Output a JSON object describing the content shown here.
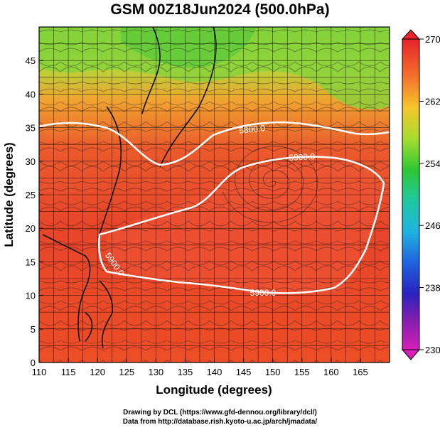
{
  "title": "GSM 00Z18Jun2024 (500.0hPa)",
  "xlabel": "Longitude (degrees)",
  "ylabel": "Latitude  (degrees)",
  "xticks": [
    110,
    115,
    120,
    125,
    130,
    135,
    140,
    145,
    150,
    155,
    160,
    165
  ],
  "yticks": [
    0,
    5,
    10,
    15,
    20,
    25,
    30,
    35,
    40,
    45
  ],
  "xlim": [
    110,
    170
  ],
  "ylim": [
    0,
    50
  ],
  "colorbar": {
    "ticks": [
      230,
      238,
      246,
      254,
      262,
      270
    ],
    "range": [
      230,
      270
    ]
  },
  "contours": [
    {
      "label": "5800.0",
      "value": 5800
    },
    {
      "label": "5900.0",
      "value": 5900
    },
    {
      "label": "5900.0",
      "value": 5900
    },
    {
      "label": "5900.0",
      "value": 5900
    }
  ],
  "colors": {
    "warm": "#e8452a",
    "cool": "#7fd23a",
    "contour": "#ffffff"
  },
  "credit": {
    "line1": "Drawing by DCL (https://www.gfd-dennou.org/library/dcl/)",
    "line2": "Data from http://database.rish.kyoto-u.ac.jp/arch/jmadata/"
  }
}
